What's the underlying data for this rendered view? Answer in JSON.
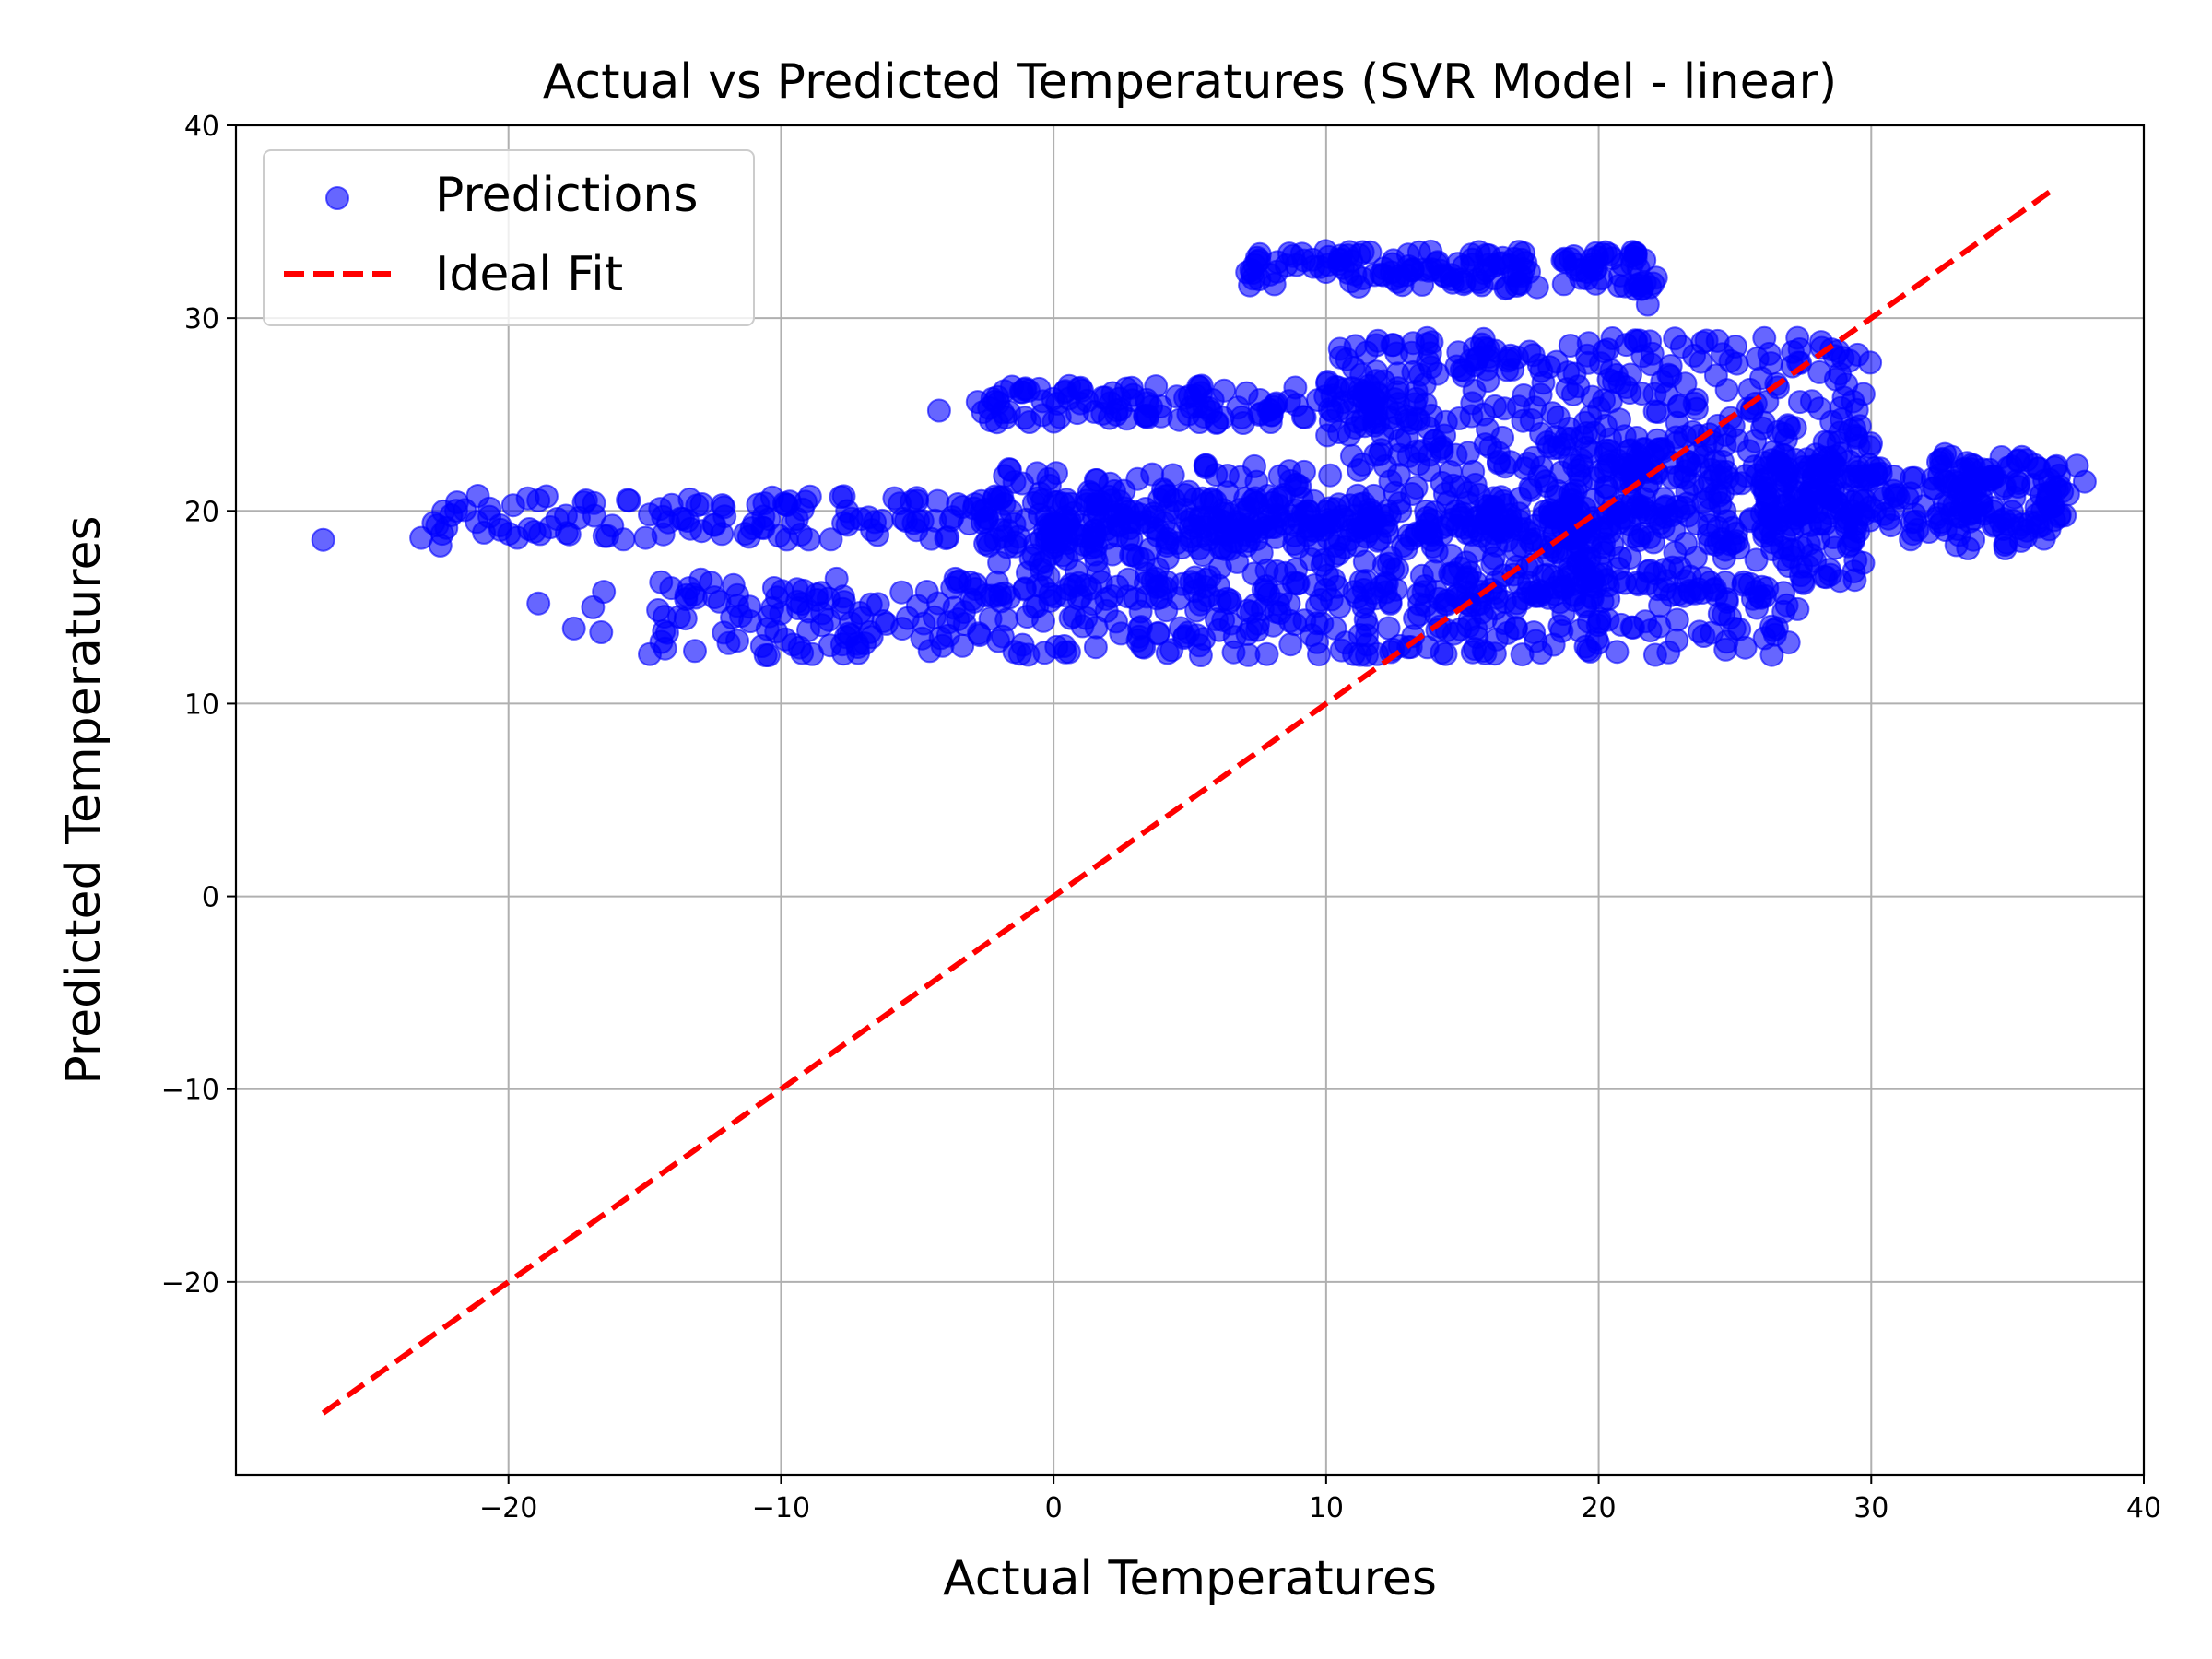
{
  "chart_data": {
    "type": "scatter",
    "title": "Actual vs Predicted Temperatures (SVR Model - linear)",
    "xlabel": "Actual Temperatures",
    "ylabel": "Predicted Temperatures",
    "xlim": [
      -30,
      40
    ],
    "ylim": [
      -30,
      40
    ],
    "xticks": [
      -20,
      -10,
      0,
      10,
      20,
      30,
      40
    ],
    "yticks": [
      -20,
      -10,
      0,
      10,
      20,
      30,
      40
    ],
    "xtick_labels": [
      "−20",
      "−10",
      "0",
      "10",
      "20",
      "30",
      "40"
    ],
    "ytick_labels": [
      "−20",
      "−10",
      "0",
      "10",
      "20",
      "30",
      "40"
    ],
    "grid": true,
    "legend_position": "top-left",
    "series": [
      {
        "name": "Predictions",
        "kind": "scatter",
        "color": "#0000ff",
        "alpha": 0.6,
        "bands": [
          {
            "x": [
              -23,
              20
            ],
            "y": [
              18.5,
              20.8
            ],
            "n": 260
          },
          {
            "x": [
              -3,
              38
            ],
            "y": [
              18,
              22.5
            ],
            "n": 320
          },
          {
            "x": [
              -15,
              27
            ],
            "y": [
              12.5,
              16.5
            ],
            "n": 380
          },
          {
            "x": [
              -2,
              20
            ],
            "y": [
              15,
              20
            ],
            "n": 300
          },
          {
            "x": [
              7,
              22
            ],
            "y": [
              31.5,
              33.5
            ],
            "n": 160
          },
          {
            "x": [
              10,
              30
            ],
            "y": [
              22,
              29
            ],
            "n": 320
          },
          {
            "x": [
              -3,
              13
            ],
            "y": [
              24.5,
              26.5
            ],
            "n": 140
          },
          {
            "x": [
              26,
              37
            ],
            "y": [
              19,
              23
            ],
            "n": 160
          },
          {
            "x": [
              18,
              30
            ],
            "y": [
              16,
              24
            ],
            "n": 220
          }
        ],
        "points": [
          {
            "x": -26.8,
            "y": 18.5
          },
          {
            "x": -23.2,
            "y": 18.6
          },
          {
            "x": -22.5,
            "y": 18.2
          },
          {
            "x": -20.7,
            "y": 19.7
          },
          {
            "x": -18.9,
            "y": 15.2
          },
          {
            "x": -17.6,
            "y": 13.9
          },
          {
            "x": -16.6,
            "y": 13.7
          },
          {
            "x": -16.5,
            "y": 15.8
          },
          {
            "x": -16.9,
            "y": 15.0
          },
          {
            "x": -14.4,
            "y": 16.3
          },
          {
            "x": -4.2,
            "y": 25.2
          },
          {
            "x": 20.5,
            "y": 33.1
          },
          {
            "x": 21.8,
            "y": 30.7
          },
          {
            "x": 22.1,
            "y": 32.1
          },
          {
            "x": 27.3,
            "y": 14.9
          },
          {
            "x": 26.9,
            "y": 15.1
          },
          {
            "x": 29.5,
            "y": 28.1
          },
          {
            "x": 36.9,
            "y": 19.7
          },
          {
            "x": 37.0,
            "y": 21.0
          }
        ]
      },
      {
        "name": "Ideal Fit",
        "kind": "line",
        "color": "#ff0000",
        "dash": "dashed",
        "x": [
          -26.8,
          36.6
        ],
        "y": [
          -26.8,
          36.6
        ]
      }
    ]
  }
}
